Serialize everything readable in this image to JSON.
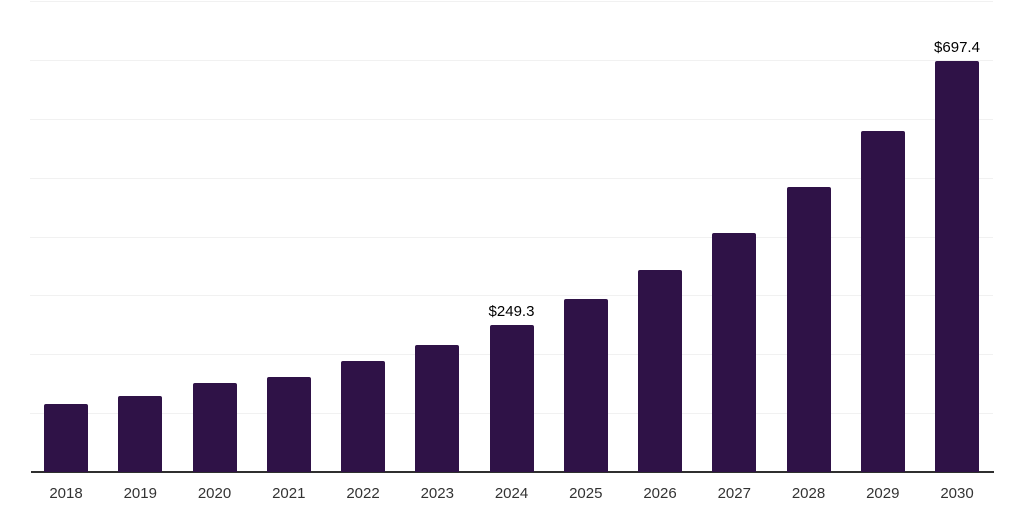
{
  "chart_data": {
    "type": "bar",
    "title": "",
    "categories": [
      "2018",
      "2019",
      "2020",
      "2021",
      "2022",
      "2023",
      "2024",
      "2025",
      "2026",
      "2027",
      "2028",
      "2029",
      "2030"
    ],
    "values": [
      115,
      130,
      151,
      162,
      188,
      216,
      249.3,
      294,
      344,
      406,
      485,
      580,
      697.4
    ],
    "data_labels": [
      "",
      "",
      "",
      "",
      "",
      "",
      "$249.3",
      "",
      "",
      "",
      "",
      "",
      "$697.4"
    ],
    "ylim": [
      0,
      800
    ],
    "gridline_interval": 100,
    "grid": true,
    "legend_position": "none",
    "colors": {
      "bar": "#2F1247",
      "gridline": "#F1F1F1",
      "axis": "#2F2F2F",
      "tick_label": "#333333",
      "data_label": "#000000",
      "background": "#FFFFFF"
    }
  }
}
